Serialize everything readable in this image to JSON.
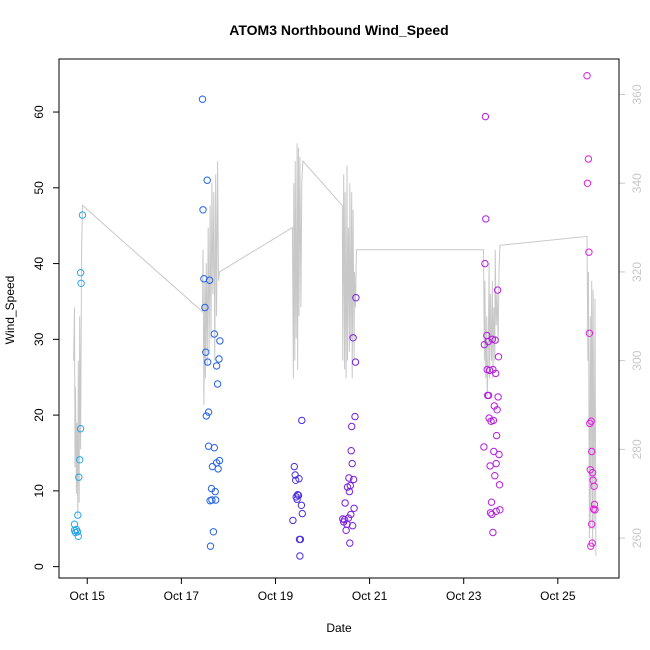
{
  "chart_data": {
    "type": "scatter",
    "title": "ATOM3 Northbound Wind_Speed",
    "xlabel": "Date",
    "ylabel": "Wind_Speed",
    "x_ticks": [
      "Oct 15",
      "Oct 17",
      "Oct 19",
      "Oct 21",
      "Oct 23",
      "Oct 25"
    ],
    "x_tick_days": [
      15,
      17,
      19,
      21,
      23,
      25
    ],
    "xlim": [
      14.4,
      26.3
    ],
    "ylim": [
      -1.5,
      67
    ],
    "y_ticks": [
      0,
      10,
      20,
      30,
      40,
      50,
      60
    ],
    "y2_ticks": [
      260,
      280,
      300,
      320,
      340,
      360
    ],
    "y2lim": [
      251,
      368
    ],
    "grid": false,
    "colors": {
      "axis": "#000000",
      "secondary_axis": "#c8c8c8",
      "line": "#c8c8c8"
    },
    "secondary_line_color": "#c8c8c8",
    "series": [
      {
        "color": "#29a7e8",
        "points": [
          [
            14.73,
            4.8
          ],
          [
            14.73,
            5.6
          ],
          [
            14.75,
            4.5
          ],
          [
            14.77,
            4.9
          ],
          [
            14.79,
            4.6
          ],
          [
            14.8,
            6.8
          ],
          [
            14.81,
            4.0
          ],
          [
            14.82,
            11.8
          ],
          [
            14.84,
            14.1
          ],
          [
            14.86,
            18.2
          ],
          [
            14.86,
            38.8
          ],
          [
            14.87,
            37.4
          ],
          [
            14.9,
            46.4
          ]
        ]
      },
      {
        "color": "#2563e6",
        "points": [
          [
            17.45,
            61.7
          ],
          [
            17.46,
            47.1
          ],
          [
            17.48,
            38.0
          ],
          [
            17.5,
            34.2
          ],
          [
            17.52,
            28.3
          ],
          [
            17.53,
            19.9
          ],
          [
            17.55,
            51.0
          ],
          [
            17.56,
            27.0
          ],
          [
            17.58,
            20.4
          ],
          [
            17.58,
            15.9
          ],
          [
            17.6,
            37.8
          ],
          [
            17.61,
            8.7
          ],
          [
            17.62,
            2.7
          ],
          [
            17.64,
            10.3
          ],
          [
            17.65,
            8.8
          ],
          [
            17.66,
            13.2
          ],
          [
            17.68,
            4.6
          ],
          [
            17.7,
            15.7
          ],
          [
            17.7,
            30.7
          ],
          [
            17.72,
            9.9
          ],
          [
            17.73,
            8.8
          ],
          [
            17.75,
            26.5
          ],
          [
            17.75,
            13.7
          ],
          [
            17.77,
            24.1
          ],
          [
            17.78,
            12.9
          ],
          [
            17.8,
            27.4
          ],
          [
            17.81,
            14.0
          ],
          [
            17.82,
            29.8
          ]
        ]
      },
      {
        "color": "#4a2fe0",
        "points": [
          [
            19.37,
            6.1
          ],
          [
            19.4,
            13.2
          ],
          [
            19.42,
            12.1
          ],
          [
            19.43,
            11.4
          ],
          [
            19.44,
            9.2
          ],
          [
            19.46,
            8.9
          ],
          [
            19.47,
            9.5
          ],
          [
            19.49,
            9.4
          ],
          [
            19.5,
            11.6
          ],
          [
            19.51,
            3.6
          ],
          [
            19.52,
            1.4
          ],
          [
            19.53,
            3.6
          ],
          [
            19.55,
            8.1
          ],
          [
            19.56,
            19.3
          ],
          [
            19.57,
            7.0
          ]
        ]
      },
      {
        "color": "#7a1fe0",
        "points": [
          [
            20.43,
            6.3
          ],
          [
            20.45,
            5.9
          ],
          [
            20.47,
            6.2
          ],
          [
            20.48,
            8.4
          ],
          [
            20.5,
            4.8
          ],
          [
            20.52,
            5.6
          ],
          [
            20.53,
            10.5
          ],
          [
            20.55,
            6.4
          ],
          [
            20.56,
            11.7
          ],
          [
            20.57,
            9.9
          ],
          [
            20.58,
            3.1
          ],
          [
            20.59,
            10.7
          ],
          [
            20.6,
            6.9
          ],
          [
            20.61,
            15.3
          ],
          [
            20.62,
            18.5
          ],
          [
            20.63,
            13.6
          ],
          [
            20.64,
            5.4
          ],
          [
            20.65,
            30.2
          ],
          [
            20.66,
            11.5
          ],
          [
            20.67,
            7.7
          ],
          [
            20.69,
            19.8
          ],
          [
            20.7,
            27.0
          ],
          [
            20.71,
            35.5
          ]
        ]
      },
      {
        "color": "#b61ee0",
        "points": [
          [
            23.43,
            15.8
          ],
          [
            23.44,
            29.3
          ],
          [
            23.45,
            40.0
          ],
          [
            23.46,
            59.4
          ],
          [
            23.47,
            45.9
          ],
          [
            23.49,
            30.5
          ],
          [
            23.5,
            26.0
          ],
          [
            23.51,
            22.6
          ],
          [
            23.52,
            29.7
          ],
          [
            23.53,
            22.6
          ],
          [
            23.54,
            19.6
          ],
          [
            23.55,
            25.9
          ],
          [
            23.56,
            13.3
          ],
          [
            23.57,
            7.1
          ],
          [
            23.58,
            19.2
          ],
          [
            23.59,
            8.5
          ],
          [
            23.6,
            6.9
          ],
          [
            23.61,
            30.0
          ],
          [
            23.62,
            26.0
          ],
          [
            23.62,
            4.5
          ],
          [
            23.63,
            19.3
          ],
          [
            23.64,
            15.2
          ],
          [
            23.65,
            21.2
          ],
          [
            23.66,
            12.0
          ],
          [
            23.67,
            29.9
          ],
          [
            23.68,
            25.5
          ],
          [
            23.69,
            13.6
          ],
          [
            23.69,
            7.3
          ],
          [
            23.7,
            17.3
          ],
          [
            23.71,
            20.7
          ],
          [
            23.72,
            36.5
          ],
          [
            23.73,
            22.4
          ],
          [
            23.74,
            27.7
          ],
          [
            23.75,
            14.8
          ],
          [
            23.76,
            10.8
          ],
          [
            23.77,
            7.5
          ]
        ]
      },
      {
        "color": "#e21ee0",
        "points": [
          [
            25.62,
            64.8
          ],
          [
            25.63,
            50.6
          ],
          [
            25.65,
            53.8
          ],
          [
            25.66,
            41.5
          ],
          [
            25.67,
            30.8
          ],
          [
            25.68,
            18.9
          ],
          [
            25.69,
            12.8
          ],
          [
            25.7,
            2.7
          ],
          [
            25.71,
            19.2
          ],
          [
            25.72,
            15.2
          ],
          [
            25.72,
            5.6
          ],
          [
            25.73,
            3.1
          ],
          [
            25.74,
            12.4
          ],
          [
            25.75,
            11.4
          ],
          [
            25.76,
            7.6
          ],
          [
            25.77,
            10.6
          ],
          [
            25.78,
            8.2
          ],
          [
            25.79,
            7.5
          ]
        ]
      }
    ],
    "secondary_line": {
      "x": [
        14.71,
        14.73,
        14.74,
        14.75,
        14.77,
        14.78,
        14.8,
        14.81,
        14.83,
        14.84,
        14.86,
        14.88,
        14.9,
        17.45,
        17.46,
        17.48,
        17.5,
        17.51,
        17.53,
        17.55,
        17.57,
        17.59,
        17.61,
        17.63,
        17.65,
        17.67,
        17.69,
        17.71,
        17.73,
        17.75,
        17.77,
        17.79,
        17.81,
        19.36,
        19.38,
        19.39,
        19.41,
        19.42,
        19.44,
        19.46,
        19.47,
        19.49,
        19.5,
        19.52,
        19.54,
        19.56,
        19.58,
        20.42,
        20.43,
        20.45,
        20.47,
        20.48,
        20.5,
        20.52,
        20.53,
        20.55,
        20.57,
        20.58,
        20.6,
        20.62,
        20.63,
        20.65,
        20.67,
        20.68,
        20.7,
        20.72,
        23.42,
        23.44,
        23.45,
        23.47,
        23.49,
        23.5,
        23.52,
        23.54,
        23.55,
        23.57,
        23.59,
        23.61,
        23.62,
        23.64,
        23.66,
        23.67,
        23.69,
        23.71,
        23.73,
        23.75,
        23.77,
        25.62,
        25.64,
        25.65,
        25.67,
        25.69,
        25.7,
        25.72,
        25.74,
        25.75,
        25.77,
        25.79,
        25.81
      ],
      "y": [
        300,
        312,
        276,
        294,
        270,
        286,
        265,
        300,
        268,
        310,
        280,
        325,
        335,
        311,
        325,
        290,
        318,
        296,
        322,
        299,
        330,
        302,
        335,
        305,
        340,
        315,
        338,
        300,
        342,
        310,
        345,
        318,
        320,
        330,
        296,
        340,
        300,
        345,
        305,
        349,
        298,
        348,
        310,
        346,
        312,
        340,
        345,
        335,
        300,
        342,
        298,
        338,
        296,
        344,
        300,
        330,
        302,
        340,
        305,
        338,
        296,
        334,
        300,
        320,
        312,
        325,
        325,
        300,
        318,
        296,
        310,
        292,
        300,
        322,
        296,
        315,
        300,
        318,
        296,
        312,
        300,
        325,
        308,
        315,
        304,
        320,
        326,
        328,
        300,
        320,
        260,
        310,
        262,
        318,
        258,
        316,
        262,
        314,
        256
      ]
    }
  }
}
